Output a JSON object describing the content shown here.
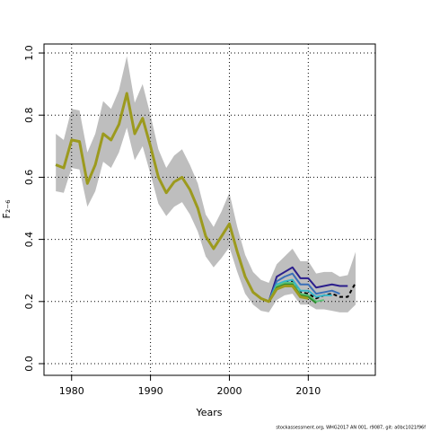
{
  "chart_data": {
    "type": "line",
    "x": [
      1978,
      1979,
      1980,
      1981,
      1982,
      1983,
      1984,
      1985,
      1986,
      1987,
      1988,
      1989,
      1990,
      1991,
      1992,
      1993,
      1994,
      1995,
      1996,
      1997,
      1998,
      1999,
      2000,
      2001,
      2002,
      2003,
      2004,
      2005,
      2006,
      2007,
      2008,
      2009,
      2010,
      2011,
      2012,
      2013,
      2014,
      2015,
      2016
    ],
    "band": {
      "color": "#bebebe",
      "upper": [
        0.74,
        0.72,
        0.82,
        0.815,
        0.68,
        0.74,
        0.845,
        0.82,
        0.88,
        0.99,
        0.84,
        0.9,
        0.8,
        0.69,
        0.63,
        0.67,
        0.69,
        0.64,
        0.58,
        0.48,
        0.44,
        0.49,
        0.55,
        0.44,
        0.35,
        0.295,
        0.27,
        0.26,
        0.32,
        0.345,
        0.37,
        0.33,
        0.33,
        0.29,
        0.295,
        0.295,
        0.28,
        0.285,
        0.36
      ],
      "lower": [
        0.555,
        0.55,
        0.63,
        0.625,
        0.505,
        0.555,
        0.65,
        0.63,
        0.68,
        0.76,
        0.655,
        0.7,
        0.61,
        0.515,
        0.475,
        0.505,
        0.52,
        0.48,
        0.425,
        0.345,
        0.31,
        0.34,
        0.375,
        0.295,
        0.225,
        0.19,
        0.17,
        0.165,
        0.205,
        0.22,
        0.225,
        0.19,
        0.19,
        0.175,
        0.175,
        0.17,
        0.165,
        0.165,
        0.19
      ]
    },
    "series": [
      {
        "color": "#000000",
        "dashed": true,
        "width": 2,
        "values": [
          0.64,
          0.63,
          0.72,
          0.715,
          0.58,
          0.64,
          0.74,
          0.72,
          0.77,
          0.87,
          0.74,
          0.79,
          0.7,
          0.6,
          0.55,
          0.585,
          0.6,
          0.56,
          0.5,
          0.41,
          0.37,
          0.41,
          0.45,
          0.36,
          0.28,
          0.23,
          0.21,
          0.2,
          0.245,
          0.26,
          0.265,
          0.23,
          0.225,
          0.21,
          0.22,
          0.225,
          0.215,
          0.215,
          0.26
        ]
      },
      {
        "color": "#2b1e8c",
        "width": 2,
        "values": [
          0.64,
          0.63,
          0.72,
          0.715,
          0.58,
          0.64,
          0.74,
          0.72,
          0.77,
          0.87,
          0.74,
          0.79,
          0.7,
          0.6,
          0.55,
          0.585,
          0.6,
          0.56,
          0.5,
          0.41,
          0.37,
          0.41,
          0.45,
          0.36,
          0.28,
          0.23,
          0.21,
          0.2,
          0.28,
          0.295,
          0.31,
          0.275,
          0.275,
          0.245,
          0.25,
          0.255,
          0.25,
          0.25,
          null
        ]
      },
      {
        "color": "#3a6fb8",
        "width": 2,
        "values": [
          0.64,
          0.63,
          0.72,
          0.715,
          0.58,
          0.64,
          0.74,
          0.72,
          0.77,
          0.87,
          0.74,
          0.79,
          0.7,
          0.6,
          0.55,
          0.585,
          0.6,
          0.56,
          0.5,
          0.41,
          0.37,
          0.41,
          0.45,
          0.36,
          0.28,
          0.23,
          0.21,
          0.2,
          0.265,
          0.28,
          0.29,
          0.255,
          0.255,
          0.225,
          0.23,
          0.235,
          0.225,
          null,
          null
        ]
      },
      {
        "color": "#36b5c8",
        "width": 2,
        "values": [
          0.64,
          0.63,
          0.72,
          0.715,
          0.58,
          0.64,
          0.74,
          0.72,
          0.77,
          0.87,
          0.74,
          0.79,
          0.7,
          0.6,
          0.55,
          0.585,
          0.6,
          0.56,
          0.5,
          0.41,
          0.37,
          0.41,
          0.45,
          0.36,
          0.28,
          0.23,
          0.21,
          0.2,
          0.255,
          0.265,
          0.27,
          0.235,
          0.235,
          0.215,
          0.22,
          0.22,
          null,
          null,
          null
        ]
      },
      {
        "color": "#5fc47a",
        "width": 2,
        "values": [
          0.64,
          0.63,
          0.72,
          0.715,
          0.58,
          0.64,
          0.74,
          0.72,
          0.77,
          0.87,
          0.74,
          0.79,
          0.7,
          0.6,
          0.55,
          0.585,
          0.6,
          0.56,
          0.5,
          0.41,
          0.37,
          0.41,
          0.45,
          0.36,
          0.28,
          0.23,
          0.21,
          0.2,
          0.25,
          0.26,
          0.26,
          0.225,
          0.22,
          0.2,
          0.205,
          null,
          null,
          null,
          null
        ]
      },
      {
        "color": "#2e8b2e",
        "width": 2,
        "values": [
          0.64,
          0.63,
          0.72,
          0.715,
          0.58,
          0.64,
          0.74,
          0.72,
          0.77,
          0.87,
          0.74,
          0.79,
          0.7,
          0.6,
          0.55,
          0.585,
          0.6,
          0.56,
          0.5,
          0.41,
          0.37,
          0.41,
          0.45,
          0.36,
          0.28,
          0.23,
          0.21,
          0.2,
          0.245,
          0.255,
          0.255,
          0.22,
          0.215,
          0.195,
          null,
          null,
          null,
          null,
          null
        ]
      },
      {
        "color": "#9c9a1e",
        "width": 3,
        "values": [
          0.64,
          0.63,
          0.72,
          0.715,
          0.58,
          0.64,
          0.74,
          0.72,
          0.77,
          0.87,
          0.74,
          0.79,
          0.7,
          0.6,
          0.55,
          0.585,
          0.6,
          0.56,
          0.5,
          0.41,
          0.37,
          0.41,
          0.45,
          0.36,
          0.28,
          0.23,
          0.21,
          0.2,
          0.24,
          0.25,
          0.25,
          0.215,
          0.21,
          null,
          null,
          null,
          null,
          null,
          null
        ]
      }
    ],
    "xlabel": "Years",
    "ylabel": "F₂₋₆",
    "xlim": [
      1976.5,
      2018.5
    ],
    "ylim": [
      -0.0376,
      1.029
    ],
    "xticks": [
      1980,
      1990,
      2000,
      2010
    ],
    "yticks": [
      {
        "value": 0,
        "label": "0.0"
      },
      0.2,
      0.4,
      0.6,
      0.8,
      {
        "value": 1,
        "label": "1.0"
      }
    ],
    "grid": true,
    "footnote": "stockassessment.org, WHG2017 AN 001, r9087, git: a0bc1021f96f"
  }
}
